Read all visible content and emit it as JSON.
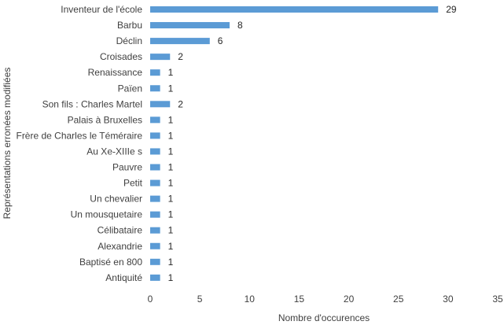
{
  "chart_data": {
    "type": "bar",
    "orientation": "horizontal",
    "title": "",
    "xlabel": "Nombre d'occurences",
    "ylabel": "Représentations erronées modifiées",
    "xlim": [
      0,
      35
    ],
    "x_ticks": [
      0,
      5,
      10,
      15,
      20,
      25,
      30,
      35
    ],
    "grid": false,
    "legend": "none",
    "bar_color": "#5b9bd5",
    "categories": [
      "Inventeur de l'école",
      "Barbu",
      "Déclin",
      "Croisades",
      "Renaissance",
      "Païen",
      "Son fils : Charles Martel",
      "Palais à Bruxelles",
      "Frère de Charles le Téméraire",
      "Au Xe-XIIIe s",
      "Pauvre",
      "Petit",
      "Un chevalier",
      "Un mousquetaire",
      "Célibataire",
      "Alexandrie",
      "Baptisé en 800",
      "Antiquité"
    ],
    "values": [
      29,
      8,
      6,
      2,
      1,
      1,
      2,
      1,
      1,
      1,
      1,
      1,
      1,
      1,
      1,
      1,
      1,
      1
    ]
  }
}
